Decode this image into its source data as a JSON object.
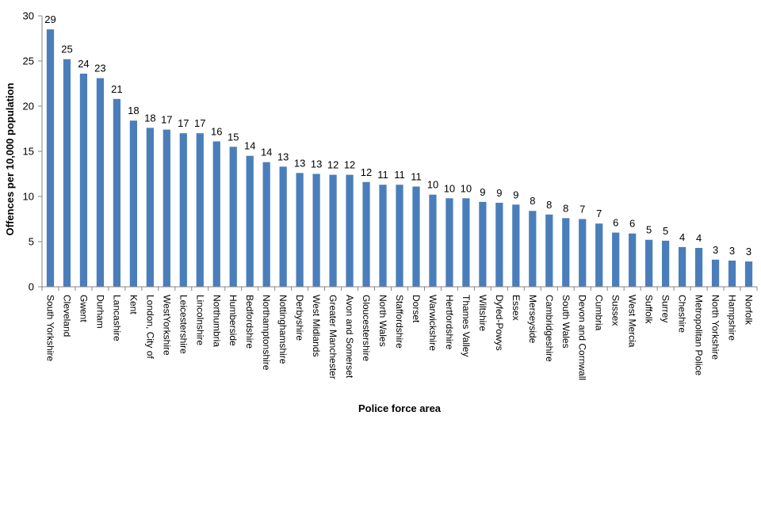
{
  "chart_data": {
    "type": "bar",
    "xlabel": "Police force area",
    "ylabel": "Offences per 10,000 population",
    "ylim": [
      0,
      30
    ],
    "yticks": [
      0,
      5,
      10,
      15,
      20,
      25,
      30
    ],
    "grid": false,
    "bar_color": "#4a7ebb",
    "categories": [
      "South Yorkshire",
      "Cleveland",
      "Gwent",
      "Durham",
      "Lancashire",
      "Kent",
      "London, City of",
      "WestYorkshire",
      "Leicestershire",
      "Lincolnshire",
      "Northumbria",
      "Humberside",
      "Bedfordshire",
      "Northamptonshire",
      "Nottinghamshire",
      "Derbyshire",
      "West Midlands",
      "Greater Manchester",
      "Avon and Somerset",
      "Gloucestershire",
      "North Wales",
      "Staffordshire",
      "Dorset",
      "Warwickshire",
      "Hertfordshire",
      "Thames Valley",
      "Wiltshire",
      "Dyfed-Powys",
      "Essex",
      "Merseyside",
      "Cambridgeshire",
      "South Wales",
      "Devon and Cornwall",
      "Cumbria",
      "Sussex",
      "West Mercia",
      "Suffolk",
      "Surrey",
      "Cheshire",
      "Metropolitan Police",
      "North Yorkshire",
      "Hampshire",
      "Norfolk"
    ],
    "values": [
      28.5,
      25.2,
      23.6,
      23.1,
      20.8,
      18.4,
      17.6,
      17.4,
      17.0,
      17.0,
      16.1,
      15.5,
      14.5,
      13.8,
      13.3,
      12.6,
      12.5,
      12.4,
      12.4,
      11.6,
      11.3,
      11.3,
      11.1,
      10.2,
      9.8,
      9.8,
      9.4,
      9.3,
      9.1,
      8.4,
      8.0,
      7.6,
      7.5,
      7.0,
      6.0,
      5.9,
      5.2,
      5.1,
      4.4,
      4.3,
      3.0,
      2.9,
      2.8
    ],
    "data_labels": [
      "29",
      "25",
      "24",
      "23",
      "21",
      "18",
      "18",
      "17",
      "17",
      "17",
      "16",
      "15",
      "14",
      "14",
      "13",
      "13",
      "13",
      "12",
      "12",
      "12",
      "11",
      "11",
      "11",
      "10",
      "10",
      "10",
      "9",
      "9",
      "9",
      "8",
      "8",
      "8",
      "7",
      "7",
      "6",
      "6",
      "5",
      "5",
      "4",
      "4",
      "3",
      "3",
      "3"
    ]
  }
}
